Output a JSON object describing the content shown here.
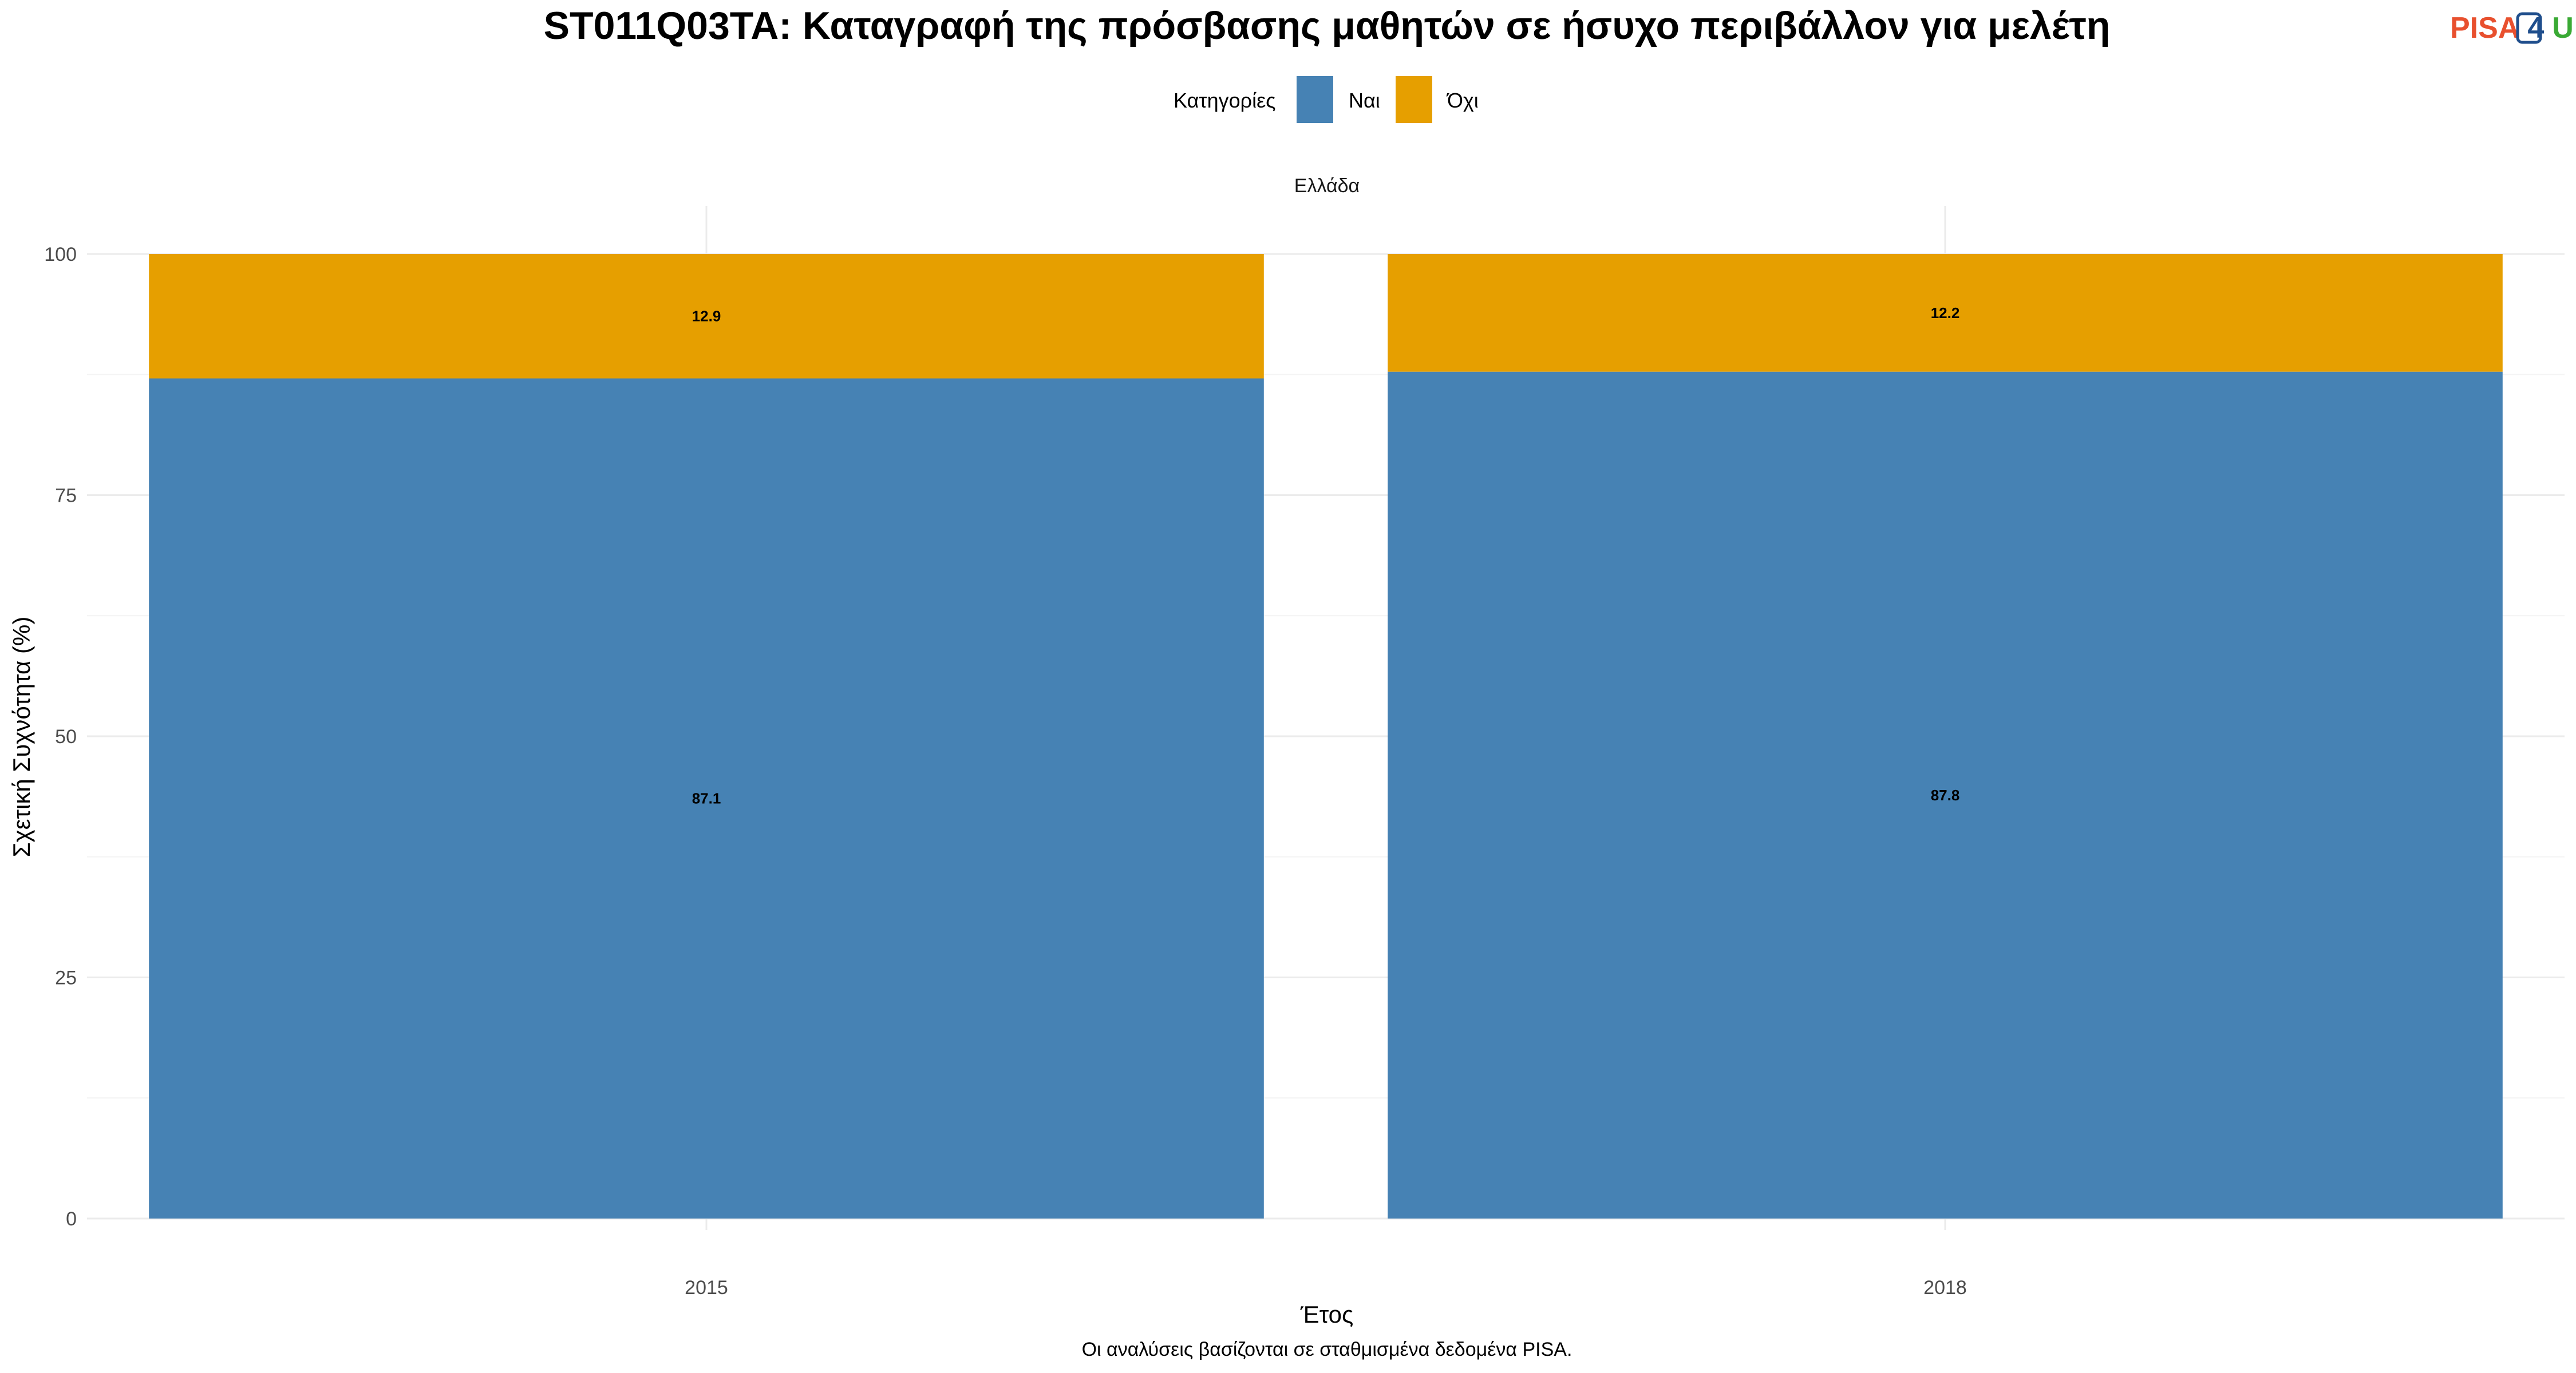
{
  "logo": {
    "part1": "PISA",
    "part2": "4",
    "part3": "U",
    "color1": "#E8502E",
    "color2": "#1F4E8C",
    "color3": "#3AAA35"
  },
  "chart_data": {
    "type": "bar",
    "stacked": true,
    "title": "ST011Q03TA: Καταγραφή της πρόσβασης μαθητών σε ήσυχο περιβάλλον για μελέτη",
    "facet": "Ελλάδα",
    "categories": [
      "2015",
      "2018"
    ],
    "series": [
      {
        "name": "Ναι",
        "color": "#4682B4",
        "values": [
          87.1,
          87.8
        ],
        "labels": [
          "87.1",
          "87.8"
        ]
      },
      {
        "name": "Όχι",
        "color": "#E69F00",
        "values": [
          12.9,
          12.2
        ],
        "labels": [
          "12.9",
          "12.2"
        ]
      }
    ],
    "legend_title": "Κατηγορίες",
    "legend_position": "top",
    "xlabel": "Έτος",
    "ylabel": "Σχετική Συχνότητα (%)",
    "ylim": [
      0,
      100
    ],
    "yticks": [
      0,
      25,
      50,
      75,
      100
    ],
    "ytick_labels": [
      "0",
      "25",
      "50",
      "75",
      "100"
    ],
    "grid": true,
    "caption": "Οι αναλύσεις βασίζονται σε σταθμισμένα δεδομένα PISA."
  }
}
